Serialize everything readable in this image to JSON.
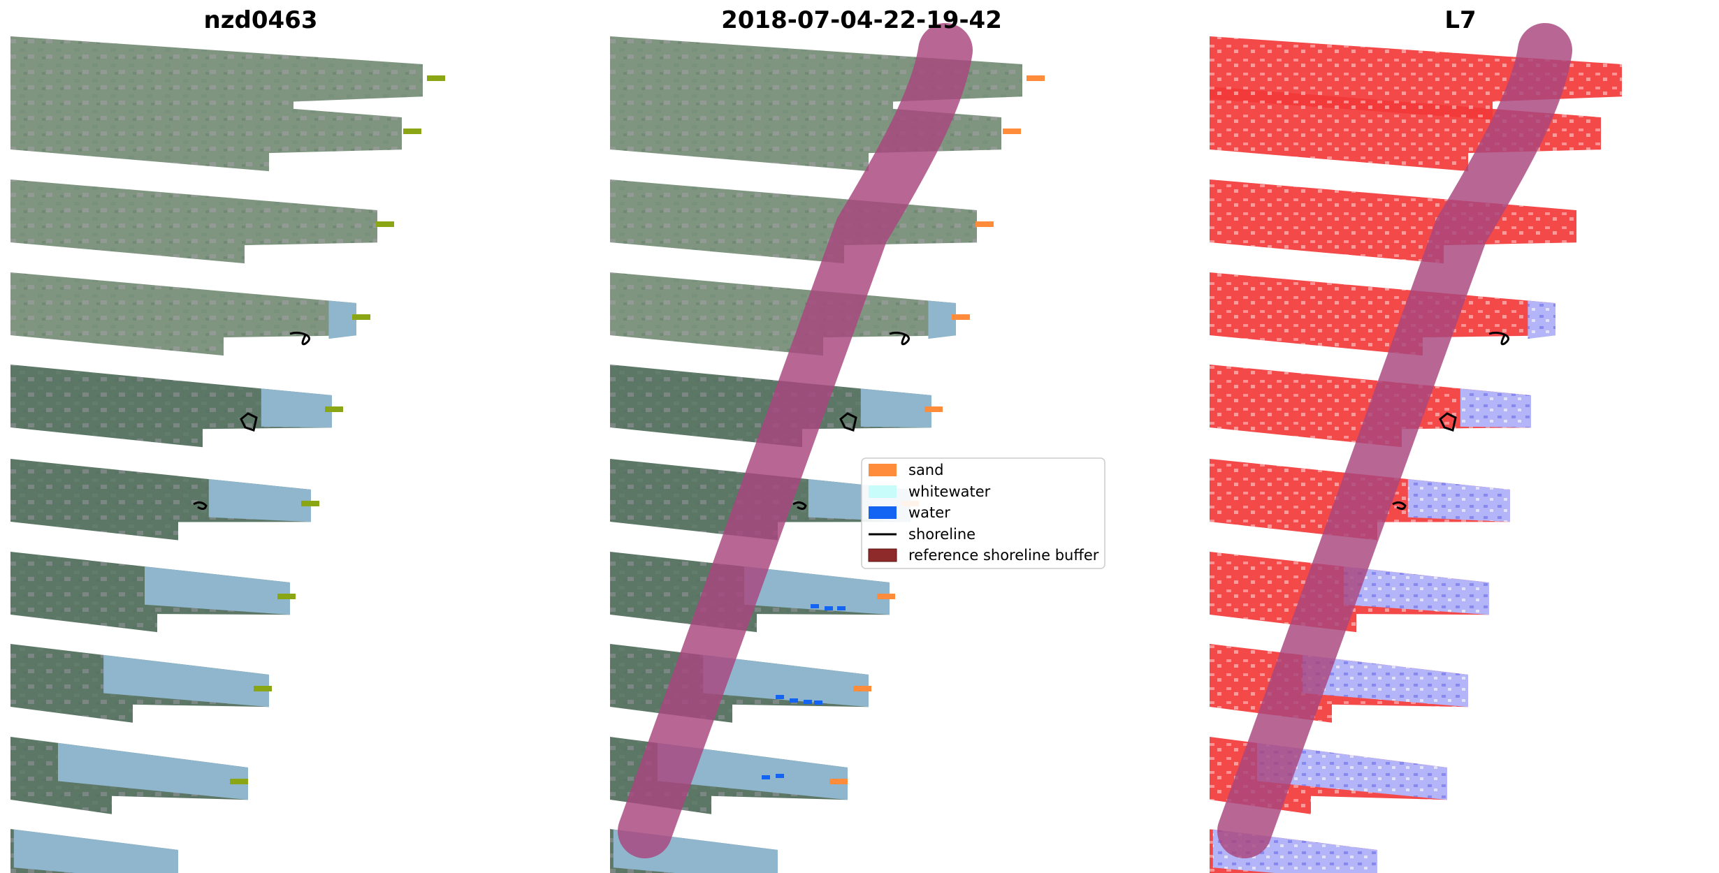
{
  "panels": [
    {
      "title": "nzd0463",
      "style": "rgb"
    },
    {
      "title": "2018-07-04-22-19-42",
      "style": "classified"
    },
    {
      "title": "L7",
      "style": "index"
    }
  ],
  "legend": {
    "items": [
      {
        "label": "sand",
        "kind": "patch",
        "color": "#ff8c3a"
      },
      {
        "label": "whitewater",
        "kind": "patch",
        "color": "#c8fcfa"
      },
      {
        "label": "water",
        "kind": "patch",
        "color": "#1464f4"
      },
      {
        "label": "shoreline",
        "kind": "line",
        "color": "#000000"
      },
      {
        "label": "reference shoreline buffer",
        "kind": "patch",
        "color": "#8f2a2a"
      }
    ]
  },
  "colors": {
    "buffer": "#a8467e",
    "land": "#7f9580",
    "land_dark": "#5d7767",
    "sea": "#8fb6cc",
    "index_land": "#f23a3a",
    "index_sea": "#b4b4f8",
    "sand_tip": "#8aa614"
  }
}
